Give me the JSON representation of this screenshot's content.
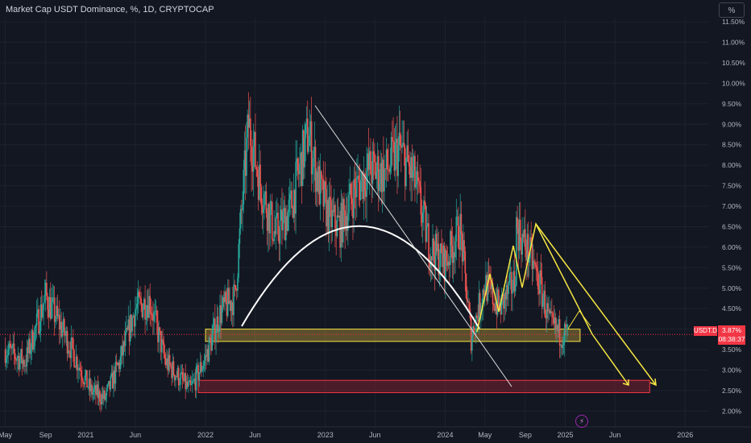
{
  "header": {
    "title": "Market Cap USDT Dominance, %, 1D, CRYPTOCAP",
    "scale_button": "%"
  },
  "price_label": {
    "symbol": "USDT.D",
    "value": "3.87%",
    "countdown": "08:38:37"
  },
  "colors": {
    "background": "#131722",
    "up": "#26a69a",
    "down": "#ef5350",
    "yellow": "#f5e642",
    "white": "#ffffff",
    "label_red": "#f23645"
  },
  "icons": {
    "flash": "lightning-icon"
  },
  "chart_data": {
    "type": "candlestick",
    "yaxis_ticks": [
      "11.50%",
      "11.00%",
      "10.50%",
      "10.00%",
      "9.50%",
      "9.00%",
      "8.50%",
      "8.00%",
      "7.50%",
      "7.00%",
      "6.50%",
      "6.00%",
      "5.50%",
      "5.00%",
      "4.50%",
      "4.00%",
      "3.50%",
      "3.00%",
      "2.50%",
      "2.00%"
    ],
    "ylim": [
      1.85,
      11.6
    ],
    "xaxis_ticks": [
      "May",
      "Sep",
      "2021",
      "Jun",
      "2022",
      "Jun",
      "2023",
      "Jun",
      "2024",
      "May",
      "Sep",
      "2025",
      "Jun",
      "2026"
    ],
    "x_range": [
      "2020-04-15",
      "2026-03-15"
    ],
    "last_value": 3.87,
    "series": [
      {
        "x": [
          "2020-05-01",
          "2020-07-01",
          "2020-09-01",
          "2020-10-15",
          "2020-12-01",
          "2021-01-15",
          "2021-03-01",
          "2021-04-15",
          "2021-06-01",
          "2021-07-15",
          "2021-09-01",
          "2021-10-15",
          "2021-11-15",
          "2022-01-01",
          "2022-02-15",
          "2022-04-01",
          "2022-05-12",
          "2022-06-15",
          "2022-08-01",
          "2022-09-15",
          "2022-11-10",
          "2022-12-15",
          "2023-01-15",
          "2023-02-15",
          "2023-04-01",
          "2023-05-15",
          "2023-07-01",
          "2023-08-15",
          "2023-10-01",
          "2023-11-15",
          "2024-01-01",
          "2024-02-15",
          "2024-03-20",
          "2024-05-01",
          "2024-06-15",
          "2024-08-01",
          "2024-08-05",
          "2024-09-15",
          "2024-10-15",
          "2024-11-15",
          "2024-12-15",
          "2025-01-08"
        ],
        "y": [
          3.5,
          3.2,
          4.8,
          4.1,
          3.3,
          2.5,
          2.3,
          3.2,
          4.5,
          4.7,
          3.2,
          2.8,
          2.5,
          3.3,
          4.4,
          4.8,
          9.0,
          7.6,
          6.3,
          6.9,
          8.8,
          7.4,
          6.7,
          6.5,
          7.4,
          7.9,
          7.8,
          8.4,
          7.6,
          6.0,
          5.6,
          6.5,
          3.8,
          5.1,
          4.5,
          5.2,
          6.5,
          5.8,
          5.1,
          4.1,
          3.9,
          3.87
        ]
      }
    ]
  },
  "annotations": {
    "support_zone": {
      "price_low": 3.7,
      "price_high": 4.0,
      "from": "2022-01-01",
      "to": "2025-02-15"
    },
    "target_zone": {
      "price_low": 2.45,
      "price_high": 2.75,
      "from": "2021-12-10",
      "to": "2025-09-15"
    }
  }
}
